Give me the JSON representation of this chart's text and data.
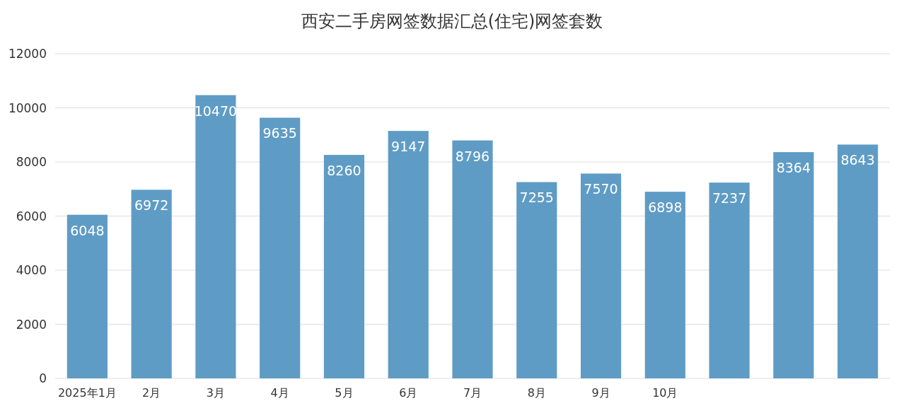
{
  "chart_data": {
    "type": "bar",
    "title": "西安二手房网签数据汇总(住宅)网签套数",
    "categories": [
      "2025年1月",
      "2月",
      "3月",
      "4月",
      "5月",
      "6月",
      "7月",
      "8月",
      "9月",
      "10月",
      null,
      null,
      null
    ],
    "values": [
      6048,
      6972,
      10470,
      9635,
      8260,
      9147,
      8796,
      7255,
      7570,
      6898,
      7237,
      8364,
      8643
    ],
    "color": "#5f9cc5",
    "ylim": [
      0,
      12000
    ],
    "yticks": [
      0,
      2000,
      4000,
      6000,
      8000,
      10000,
      12000
    ],
    "grid": "y",
    "data_labels": true
  }
}
